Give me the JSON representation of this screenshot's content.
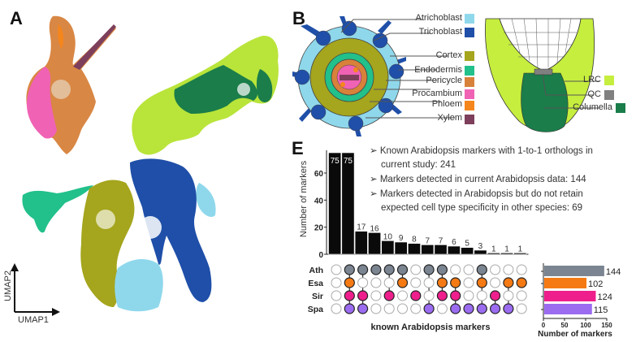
{
  "panels": {
    "a": {
      "label": "A",
      "axis_x": "UMAP1",
      "axis_y": "UMAP2"
    },
    "b": {
      "label": "B",
      "cross_section_legend": [
        {
          "name": "Atrichoblast",
          "color": "#8fd8ec"
        },
        {
          "name": "Trichoblast",
          "color": "#1f4fa8"
        },
        {
          "name": "Cortex",
          "color": "#a5a51e"
        },
        {
          "name": "Endodermis",
          "color": "#22c08a"
        },
        {
          "name": "Pericycle",
          "color": "#d7813a"
        },
        {
          "name": "Procambium",
          "color": "#f062b4"
        },
        {
          "name": "Phloem",
          "color": "#f5861c"
        },
        {
          "name": "Xylem",
          "color": "#7d3f5b"
        }
      ],
      "root_tip_legend": [
        {
          "name": "LRC",
          "color": "#c6ee3e"
        },
        {
          "name": "QC",
          "color": "#808080"
        },
        {
          "name": "Columella",
          "color": "#1a7d4a"
        }
      ]
    },
    "e": {
      "label": "E",
      "notes": [
        {
          "line1": "Known Arabidopsis markers with 1-to-1 orthologs in",
          "line2": "current study: 241"
        },
        {
          "line1": "Markers detected in current Arabidopsis data: 144",
          "line2": ""
        },
        {
          "line1": "Markers detected in Arabidopsis but do not retain",
          "line2": "expected cell type specificity in other species: 69"
        }
      ]
    }
  },
  "chart_data": [
    {
      "type": "bar",
      "title": "",
      "ylabel": "Number of markers",
      "xlabel": "known Arabidopsis markers",
      "ylim": [
        0,
        75
      ],
      "yticks": [
        0,
        20,
        40,
        60
      ],
      "values": [
        75,
        75,
        17,
        16,
        10,
        9,
        8,
        7,
        7,
        6,
        5,
        3,
        1,
        1,
        1
      ],
      "sets": [
        "Ath",
        "Esa",
        "Sir",
        "Spa"
      ],
      "set_colors": {
        "Ath": "#7b8591",
        "Esa": "#f57a14",
        "Sir": "#ee1f8c",
        "Spa": "#9b6cf0"
      },
      "intersections": [
        [],
        [
          "Ath",
          "Esa",
          "Sir",
          "Spa"
        ],
        [
          "Ath",
          "Sir",
          "Spa"
        ],
        [
          "Ath"
        ],
        [
          "Ath",
          "Sir"
        ],
        [
          "Ath",
          "Esa"
        ],
        [
          "Sir"
        ],
        [
          "Ath",
          "Spa"
        ],
        [
          "Ath",
          "Esa",
          "Sir"
        ],
        [
          "Esa",
          "Sir",
          "Spa"
        ],
        [
          "Spa"
        ],
        [
          "Ath",
          "Esa",
          "Spa"
        ],
        [
          "Sir",
          "Spa"
        ],
        [
          "Esa",
          "Spa"
        ],
        [
          "Esa"
        ]
      ]
    },
    {
      "type": "bar",
      "orientation": "horizontal",
      "xlabel": "Number of markers",
      "xlim": [
        0,
        150
      ],
      "xticks": [
        0,
        50,
        100,
        150
      ],
      "categories": [
        "Ath",
        "Esa",
        "Sir",
        "Spa"
      ],
      "values": [
        144,
        102,
        124,
        115
      ],
      "colors": [
        "#7b8591",
        "#f57a14",
        "#ee1f8c",
        "#9b6cf0"
      ]
    }
  ]
}
